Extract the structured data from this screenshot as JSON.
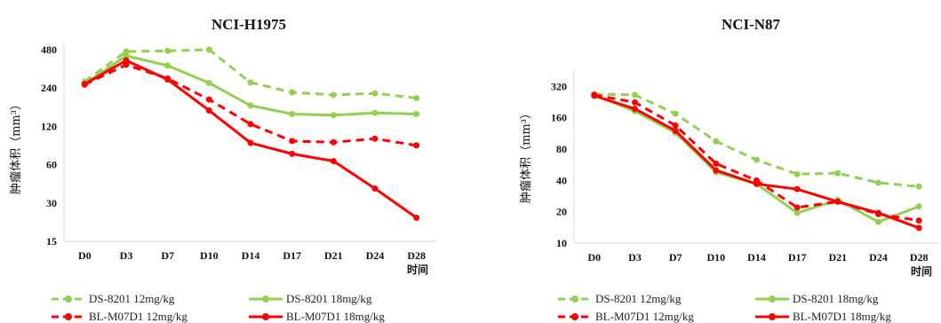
{
  "chart_data": [
    {
      "type": "line",
      "title": "NCI-H1975",
      "xlabel": "时间",
      "ylabel": "肿瘤体积（mm³）",
      "y_scale": "log",
      "ylim": [
        15,
        480
      ],
      "yticks": [
        15,
        30,
        60,
        120,
        240,
        480
      ],
      "categories": [
        "D0",
        "D3",
        "D7",
        "D10",
        "D14",
        "D17",
        "D21",
        "D24",
        "D28"
      ],
      "series": [
        {
          "name": "DS-8201 12mg/kg",
          "color": "#92d050",
          "dash": true,
          "values": [
            270,
            465,
            470,
            480,
            265,
            222,
            212,
            218,
            200
          ]
        },
        {
          "name": "DS-8201 18mg/kg",
          "color": "#92d050",
          "dash": false,
          "values": [
            258,
            430,
            360,
            263,
            175,
            150,
            147,
            153,
            150
          ]
        },
        {
          "name": "BL-M07D1 12mg/kg",
          "color": "#ff0000",
          "dash": true,
          "values": [
            255,
            365,
            285,
            195,
            125,
            92,
            90,
            96,
            85
          ]
        },
        {
          "name": "BL-M07D1 18mg/kg",
          "color": "#ff0000",
          "dash": false,
          "values": [
            258,
            395,
            280,
            160,
            89,
            73,
            64,
            39,
            23
          ]
        }
      ]
    },
    {
      "type": "line",
      "title": "NCI-N87",
      "xlabel": "时间",
      "ylabel": "肿瘤体积（mm³）",
      "y_scale": "log",
      "ylim": [
        10,
        400
      ],
      "yticks": [
        10,
        20,
        40,
        80,
        160,
        320
      ],
      "categories": [
        "D0",
        "D3",
        "D7",
        "D10",
        "D14",
        "D17",
        "D21",
        "D24",
        "D28"
      ],
      "series": [
        {
          "name": "DS-8201 12mg/kg",
          "color": "#92d050",
          "dash": true,
          "values": [
            270,
            265,
            175,
            95,
            63,
            46,
            47,
            38,
            35
          ]
        },
        {
          "name": "DS-8201 18mg/kg",
          "color": "#92d050",
          "dash": false,
          "values": [
            265,
            185,
            115,
            48,
            37,
            19.5,
            26,
            16,
            22.5
          ]
        },
        {
          "name": "BL-M07D1 12mg/kg",
          "color": "#ff0000",
          "dash": true,
          "values": [
            265,
            225,
            135,
            58,
            40,
            22,
            25,
            19,
            16.5
          ]
        },
        {
          "name": "BL-M07D1 18mg/kg",
          "color": "#ff0000",
          "dash": false,
          "values": [
            260,
            195,
            120,
            50,
            37,
            33,
            25,
            19.5,
            14
          ]
        }
      ]
    }
  ]
}
